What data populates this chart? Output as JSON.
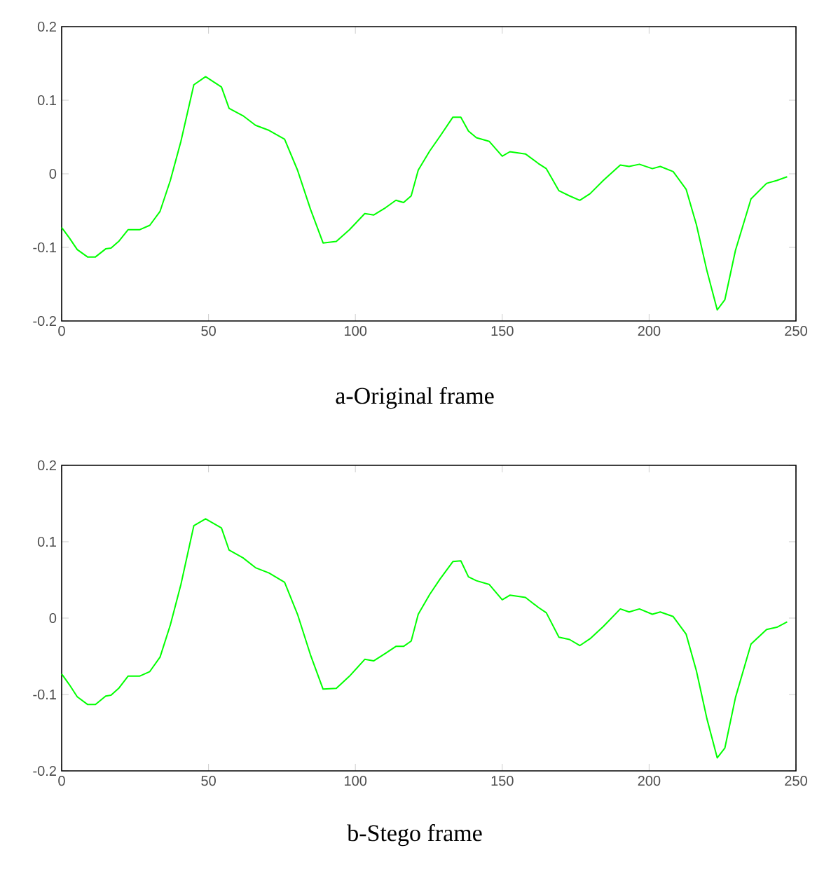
{
  "chart_data": [
    {
      "type": "line",
      "xlabel": "a-Original frame",
      "xlim": [
        0,
        250
      ],
      "ylim": [
        -0.2,
        0.2
      ],
      "xticks": [
        0,
        50,
        100,
        150,
        200,
        250
      ],
      "yticks": [
        -0.2,
        -0.1,
        0,
        0.1,
        0.2
      ],
      "series": [
        {
          "color": "#00ff00",
          "x": [
            0,
            2.6,
            5.3,
            8.8,
            11.5,
            15,
            16.8,
            19.4,
            22.6,
            26.5,
            30,
            33.5,
            37,
            40.6,
            45,
            49,
            54.4,
            57,
            61.7,
            66,
            70.6,
            75.9,
            80.3,
            84.7,
            89,
            93.5,
            98,
            103.2,
            106.2,
            110.3,
            113.8,
            116.4,
            119,
            121.4,
            125.3,
            128.8,
            133.2,
            135.9,
            138.5,
            141.2,
            145.6,
            150,
            152.6,
            157.9,
            162.3,
            165,
            169.3,
            172.9,
            176.4,
            179.9,
            184.4,
            190.2,
            193.2,
            196.7,
            201.1,
            203.8,
            208.2,
            212.6,
            216.1,
            219.7,
            223.2,
            225.8,
            229.4,
            234.7,
            240,
            243.5,
            247
          ],
          "values": [
            -0.073,
            -0.087,
            -0.103,
            -0.113,
            -0.113,
            -0.102,
            -0.101,
            -0.092,
            -0.076,
            -0.076,
            -0.07,
            -0.051,
            -0.009,
            0.044,
            0.121,
            0.132,
            0.118,
            0.089,
            0.079,
            0.066,
            0.059,
            0.047,
            0.005,
            -0.048,
            -0.094,
            -0.092,
            -0.076,
            -0.054,
            -0.056,
            -0.046,
            -0.036,
            -0.039,
            -0.03,
            0.005,
            0.031,
            0.051,
            0.077,
            0.077,
            0.058,
            0.049,
            0.044,
            0.024,
            0.03,
            0.027,
            0.014,
            0.007,
            -0.023,
            -0.03,
            -0.036,
            -0.027,
            -0.009,
            0.012,
            0.01,
            0.013,
            0.007,
            0.01,
            0.003,
            -0.021,
            -0.069,
            -0.132,
            -0.185,
            -0.171,
            -0.104,
            -0.034,
            -0.013,
            -0.009,
            -0.004
          ]
        }
      ]
    },
    {
      "type": "line",
      "xlabel": "b-Stego  frame",
      "xlim": [
        0,
        250
      ],
      "ylim": [
        -0.2,
        0.2
      ],
      "xticks": [
        0,
        50,
        100,
        150,
        200,
        250
      ],
      "yticks": [
        -0.2,
        -0.1,
        0,
        0.1,
        0.2
      ],
      "series": [
        {
          "color": "#00ff00",
          "x": [
            0,
            2.6,
            5.3,
            8.8,
            11.5,
            15,
            16.8,
            19.4,
            22.6,
            26.5,
            30,
            33.5,
            37,
            40.6,
            45,
            49,
            54.4,
            57,
            61.7,
            66,
            70.6,
            75.9,
            80.3,
            84.7,
            89,
            93.5,
            98,
            103.2,
            106.2,
            110.3,
            113.8,
            116.4,
            119,
            121.4,
            125.3,
            128.8,
            133.2,
            135.9,
            138.5,
            141.2,
            145.6,
            150,
            152.6,
            157.9,
            162.3,
            165,
            169.3,
            172.9,
            176.4,
            179.9,
            184.4,
            190.2,
            193.2,
            196.7,
            201.1,
            203.8,
            208.2,
            212.6,
            216.1,
            219.7,
            223.2,
            225.8,
            229.4,
            234.7,
            240,
            243.5,
            247
          ],
          "values": [
            -0.073,
            -0.087,
            -0.103,
            -0.113,
            -0.113,
            -0.102,
            -0.101,
            -0.092,
            -0.076,
            -0.076,
            -0.07,
            -0.051,
            -0.009,
            0.044,
            0.121,
            0.13,
            0.118,
            0.089,
            0.079,
            0.066,
            0.059,
            0.047,
            0.005,
            -0.048,
            -0.093,
            -0.092,
            -0.076,
            -0.054,
            -0.056,
            -0.046,
            -0.037,
            -0.037,
            -0.03,
            0.005,
            0.031,
            0.051,
            0.074,
            0.075,
            0.054,
            0.049,
            0.044,
            0.024,
            0.03,
            0.027,
            0.014,
            0.007,
            -0.025,
            -0.028,
            -0.036,
            -0.027,
            -0.011,
            0.012,
            0.008,
            0.012,
            0.005,
            0.008,
            0.002,
            -0.021,
            -0.069,
            -0.132,
            -0.183,
            -0.17,
            -0.104,
            -0.034,
            -0.015,
            -0.012,
            -0.005
          ]
        }
      ]
    }
  ]
}
